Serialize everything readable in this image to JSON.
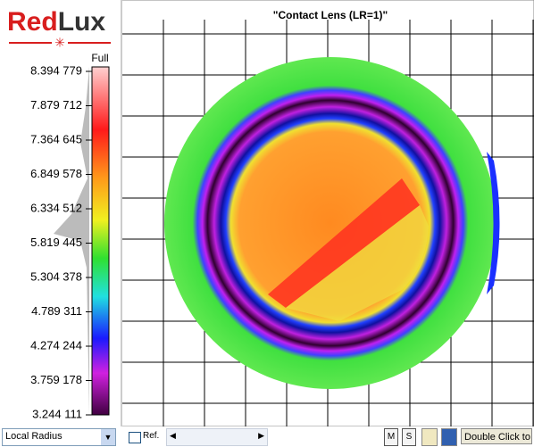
{
  "logo": {
    "red": "Red",
    "dark": "Lux"
  },
  "colorbar": {
    "top_label": "Full",
    "ticks": [
      "8.394 779",
      "7.879 712",
      "7.364 645",
      "6.849 578",
      "6.334 512",
      "5.819 445",
      "5.304 378",
      "4.789 311",
      "4.274 244",
      "3.759 178",
      "3.244 111"
    ]
  },
  "plot": {
    "title": "\"Contact Lens (LR=1)\""
  },
  "toolbar": {
    "dropdown": "Local Radius",
    "checkbox": "Ref.",
    "buttons": [
      "M",
      "S"
    ],
    "hint": "Double Click to"
  }
}
